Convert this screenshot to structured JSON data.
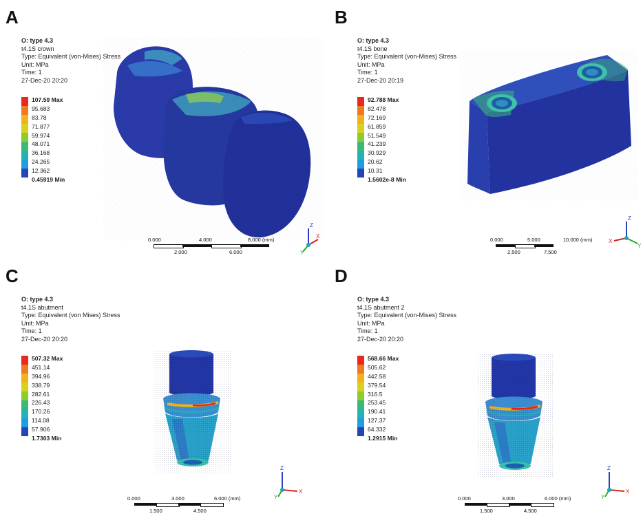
{
  "legend_colors": [
    "#e8291c",
    "#f07a1f",
    "#f2b21c",
    "#d8d21e",
    "#8ecb2c",
    "#3cb878",
    "#23b3b6",
    "#1e9ee0",
    "#2346b5"
  ],
  "panels": [
    {
      "letter": "A",
      "info": {
        "title": "O: type 4.3",
        "name": "t4.1S crown",
        "type": "Type: Equivalent (von-Mises) Stress",
        "unit": "Unit: MPa",
        "time": "Time: 1",
        "date": "27-Dec-20 20:20"
      },
      "legend": [
        "107.59 Max",
        "95.683",
        "83.78",
        "71.877",
        "59.974",
        "48.071",
        "36.168",
        "24.265",
        "12.362",
        "0.45919 Min"
      ],
      "scale": {
        "top": [
          "0.000",
          "4.000",
          "8.000 (mm)"
        ],
        "bottom": [
          "2.000",
          "6.000"
        ]
      }
    },
    {
      "letter": "B",
      "info": {
        "title": "O: type 4.3",
        "name": "t4.1S bone",
        "type": "Type: Equivalent (von-Mises) Stress",
        "unit": "Unit: MPa",
        "time": "Time: 1",
        "date": "27-Dec-20 20:19"
      },
      "legend": [
        "92.788 Max",
        "82.478",
        "72.169",
        "61.859",
        "51.549",
        "41.239",
        "30.929",
        "20.62",
        "10.31",
        "1.5602e-8 Min"
      ],
      "scale": {
        "top": [
          "0.000",
          "5.000",
          "10.000 (mm)"
        ],
        "bottom": [
          "2.500",
          "7.500"
        ]
      }
    },
    {
      "letter": "C",
      "info": {
        "title": "O: type 4.3",
        "name": "t4.1S abutment",
        "type": "Type: Equivalent (von Mises) Stress",
        "unit": "Unit: MPa",
        "time": "Time: 1",
        "date": "27-Dec-20 20:20"
      },
      "legend": [
        "507.32 Max",
        "451.14",
        "394.96",
        "338.79",
        "282.61",
        "226.43",
        "170.26",
        "114.08",
        "57.906",
        "1.7303 Min"
      ],
      "scale": {
        "top": [
          "0.000",
          "3.000",
          "6.000 (mm)"
        ],
        "bottom": [
          "1.500",
          "4.500"
        ]
      }
    },
    {
      "letter": "D",
      "info": {
        "title": "O: type 4.3",
        "name": "t4.1S abutment 2",
        "type": "Type: Equivalent (von-Mises) Stress",
        "unit": "Unit: MPa",
        "time": "Time: 1",
        "date": "27-Dec-20 20:20"
      },
      "legend": [
        "568.66 Max",
        "505.62",
        "442.58",
        "379.54",
        "316.5",
        "253.45",
        "190.41",
        "127.37",
        "64.332",
        "1.2915 Min"
      ],
      "scale": {
        "top": [
          "0.000",
          "3.000",
          "6.000 (mm)"
        ],
        "bottom": [
          "1.500",
          "4.500"
        ]
      }
    }
  ],
  "axes": {
    "x": "X",
    "y": "Y",
    "z": "Z"
  }
}
